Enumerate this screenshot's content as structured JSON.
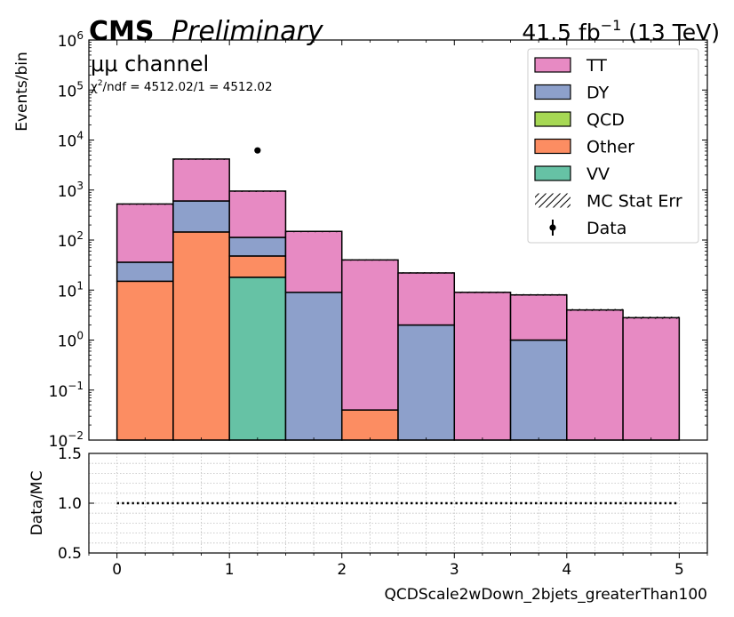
{
  "header": {
    "experiment": "CMS",
    "status": "Preliminary",
    "lumi_prefix": "41.5 fb",
    "lumi_exp": "−1",
    "lumi_suffix": " (13 TeV)",
    "channel": "μμ channel",
    "chi2_prefix": "χ",
    "chi2_exp": "2",
    "chi2_rest": "/ndf = 4512.02/1 = 4512.02"
  },
  "chart_data": [
    {
      "type": "bar",
      "subtype": "stacked-histogram-log",
      "ylabel": "Events/bin",
      "yscale": "log",
      "ylim": [
        0.01,
        1000000
      ],
      "xlim": [
        -0.25,
        5.25
      ],
      "y_ticks": [
        {
          "value": 0.01,
          "base": "10",
          "exp": "−2"
        },
        {
          "value": 0.1,
          "base": "10",
          "exp": "−1"
        },
        {
          "value": 1,
          "base": "10",
          "exp": "0"
        },
        {
          "value": 10,
          "base": "10",
          "exp": "1"
        },
        {
          "value": 100,
          "base": "10",
          "exp": "2"
        },
        {
          "value": 1000,
          "base": "10",
          "exp": "3"
        },
        {
          "value": 10000,
          "base": "10",
          "exp": "4"
        },
        {
          "value": 100000,
          "base": "10",
          "exp": "5"
        },
        {
          "value": 1000000,
          "base": "10",
          "exp": "6"
        }
      ],
      "bins": [
        [
          0,
          0.5
        ],
        [
          0.5,
          1
        ],
        [
          1,
          1.5
        ],
        [
          1.5,
          2
        ],
        [
          2,
          2.5
        ],
        [
          2.5,
          3
        ],
        [
          3,
          3.5
        ],
        [
          3.5,
          4
        ],
        [
          4,
          4.5
        ],
        [
          4.5,
          5
        ]
      ],
      "stack_order": [
        "VV",
        "Other",
        "QCD",
        "DY",
        "TT"
      ],
      "series": [
        {
          "name": "TT",
          "color": "#e78ac3",
          "values": [
            490,
            3560,
            840,
            140,
            40,
            20,
            9,
            7,
            4,
            2.8
          ]
        },
        {
          "name": "DY",
          "color": "#8da0cb",
          "values": [
            21,
            460,
            65,
            9,
            0,
            2,
            0,
            1,
            0,
            0
          ]
        },
        {
          "name": "QCD",
          "color": "#a6d854",
          "values": [
            0,
            0,
            0,
            0,
            0,
            0,
            0,
            0,
            0,
            0
          ]
        },
        {
          "name": "Other",
          "color": "#fc8d62",
          "values": [
            15,
            145,
            30,
            0,
            0.04,
            0,
            0,
            0,
            0,
            0
          ]
        },
        {
          "name": "VV",
          "color": "#66c2a5",
          "values": [
            0,
            0,
            18,
            0,
            0,
            0,
            0,
            0,
            0,
            0
          ]
        }
      ],
      "data_points": [
        {
          "x": 1.25,
          "y": 6200
        }
      ],
      "legend": {
        "placement": "top-right",
        "entries": [
          {
            "label": "TT",
            "kind": "patch",
            "color": "#e78ac3"
          },
          {
            "label": "DY",
            "kind": "patch",
            "color": "#8da0cb"
          },
          {
            "label": "QCD",
            "kind": "patch",
            "color": "#a6d854"
          },
          {
            "label": "Other",
            "kind": "patch",
            "color": "#fc8d62"
          },
          {
            "label": "VV",
            "kind": "patch",
            "color": "#66c2a5"
          },
          {
            "label": "MC Stat Err",
            "kind": "hatch"
          },
          {
            "label": "Data",
            "kind": "marker"
          }
        ]
      }
    },
    {
      "type": "line",
      "subtype": "ratio",
      "ylabel": "Data/MC",
      "xlabel": "QCDScale2wDown_2bjets_greaterThan100",
      "ylim": [
        0.5,
        1.5
      ],
      "xlim": [
        -0.25,
        5.25
      ],
      "y_ticks": [
        "0.5",
        "1.0",
        "1.5"
      ],
      "x_ticks": [
        "0",
        "1",
        "2",
        "3",
        "4",
        "5"
      ],
      "grid": true,
      "reference_line": {
        "y": 1.0,
        "x_range": [
          0,
          5
        ]
      }
    }
  ]
}
